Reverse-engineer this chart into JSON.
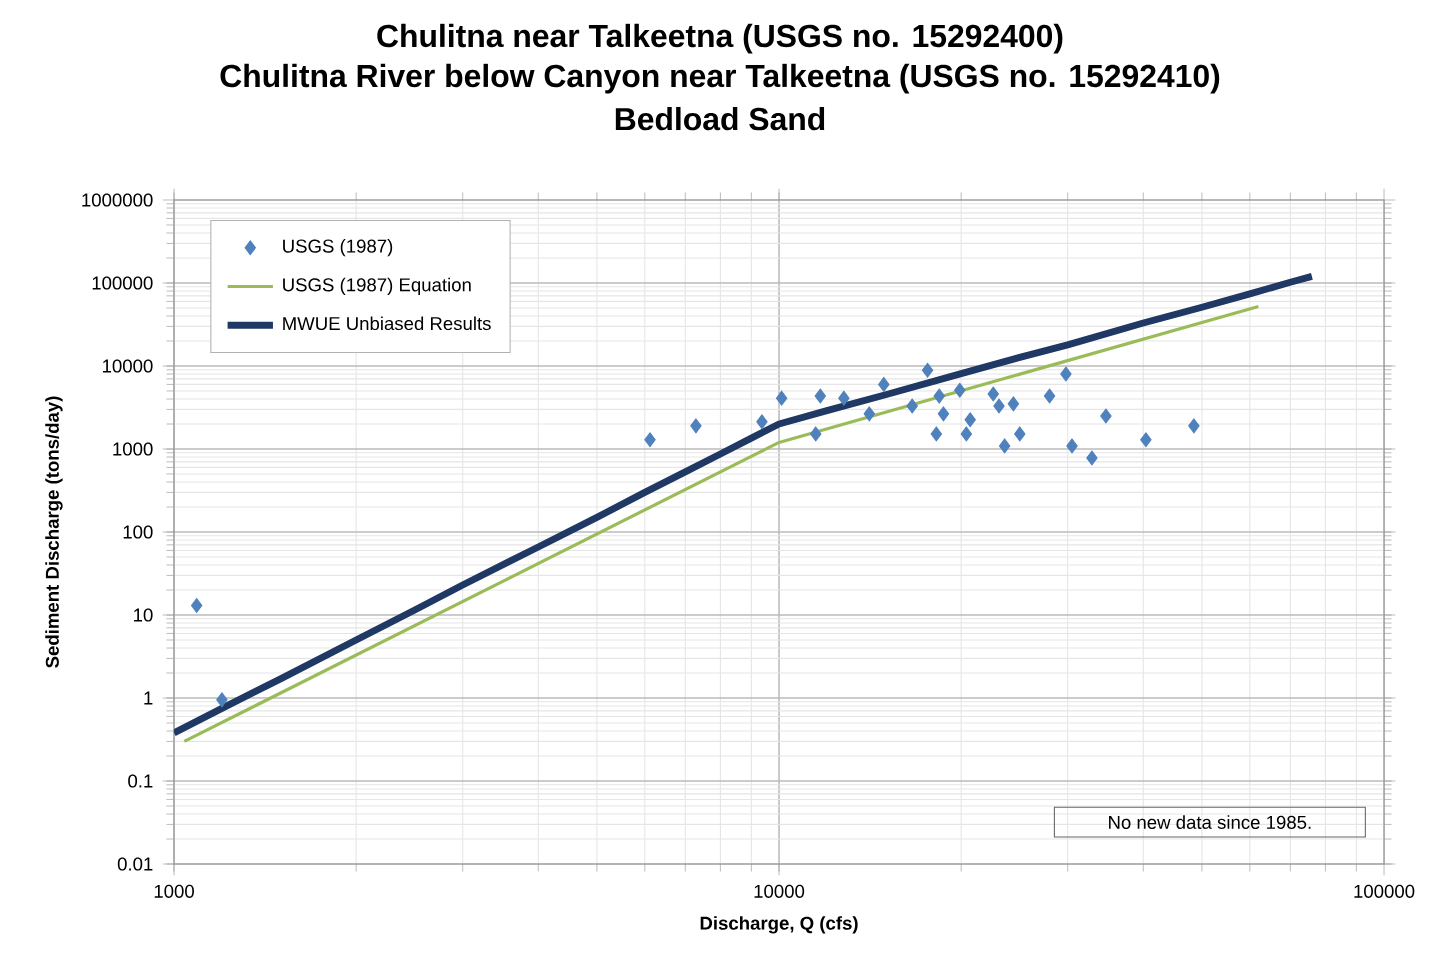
{
  "chart_data": {
    "type": "scatter",
    "title": "Chulitna near Talkeetna (USGS no. 15292400)",
    "subtitle": "Chulitna River below Canyon near Talkeetna (USGS no. 15292410)",
    "xlabel": "Discharge, Q (cfs)",
    "ylabel": "Sediment Discharge (tons/day)",
    "log": "xy",
    "grid": true,
    "legend": "top left",
    "xlim": [
      1000,
      100000
    ],
    "xticks": [
      1000,
      10000,
      100000
    ],
    "ylim": [
      0.01,
      1000000
    ],
    "yticks": [
      0.01,
      0.1,
      1,
      10,
      100,
      1000,
      10000,
      100000,
      1000000
    ],
    "annotations": [
      "Bedload Sand",
      "No new data since 1985."
    ],
    "series": [
      {
        "name": "USGS (1987)",
        "marker": "diamond",
        "color": "#4f81bd",
        "x": [
          1090,
          1200,
          6120,
          7290,
          9370,
          10100,
          11700,
          12800,
          11500,
          14900,
          14100,
          16600,
          17600,
          18400,
          18700,
          18200,
          19900,
          20400,
          20700,
          22600,
          23100,
          23600,
          24400,
          25000,
          28000,
          29800,
          34700,
          30500,
          32900,
          40400,
          48500
        ],
        "values": [
          13,
          0.95,
          1290,
          1900,
          2130,
          4100,
          4340,
          4100,
          1520,
          6000,
          2650,
          3300,
          8900,
          4340,
          2650,
          1520,
          5100,
          1520,
          2250,
          4600,
          3300,
          1090,
          3500,
          1520,
          4340,
          8000,
          2500,
          1090,
          780,
          1290,
          1900
        ]
      },
      {
        "name": "USGS (1987) Equation",
        "type": "line",
        "marker": "none",
        "color": "#9bbb59",
        "x": [
          1040,
          10000,
          62000
        ],
        "values": [
          0.3,
          1200,
          52000
        ]
      },
      {
        "name": "MWUE Unbiased Results",
        "type": "line",
        "marker": "none",
        "color": "#1f3864",
        "x": [
          1000,
          1200,
          1500,
          2000,
          2500,
          3000,
          4000,
          5000,
          6000,
          7000,
          8000,
          9000,
          10000,
          12000,
          15000,
          20000,
          25000,
          30000,
          40000,
          50000,
          60000,
          70000,
          76000
        ],
        "values": [
          0.38,
          0.75,
          1.7,
          5,
          11.5,
          23,
          66,
          150,
          300,
          530,
          870,
          1350,
          2000,
          2900,
          4500,
          8100,
          12700,
          18000,
          33000,
          51000,
          74000,
          102000,
          120000
        ]
      }
    ]
  }
}
